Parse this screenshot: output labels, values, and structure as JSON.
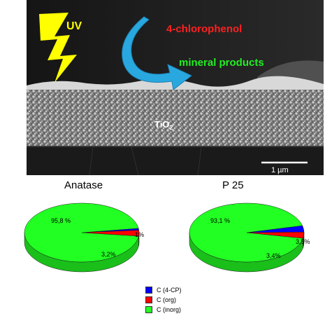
{
  "sem_image": {
    "uv_label": "UV",
    "reactant_label": "4-chlorophenol",
    "product_label": "mineral products",
    "film_label_main": "TiO",
    "film_label_sub": "2",
    "scale_bar_label": "1 µm",
    "colors": {
      "uv": "#ffff00",
      "reactant": "#ff2020",
      "product": "#22ee22",
      "arrow": "#29a8e0"
    }
  },
  "chart_data": [
    {
      "type": "pie",
      "title": "Anatase",
      "slices": [
        {
          "label": "C (inorg)",
          "value": 95.8,
          "label_text": "95,8 %",
          "color": "#22ff22"
        },
        {
          "label": "C (org)",
          "value": 3.2,
          "label_text": "3,2%",
          "color": "#ff0000"
        },
        {
          "label": "C (4-CP)",
          "value": 1,
          "label_text": "1%",
          "color": "#0000ff"
        }
      ]
    },
    {
      "type": "pie",
      "title": "P 25",
      "slices": [
        {
          "label": "C (inorg)",
          "value": 93.1,
          "label_text": "93,1 %",
          "color": "#22ff22"
        },
        {
          "label": "C (org)",
          "value": 3.4,
          "label_text": "3,4%",
          "color": "#ff0000"
        },
        {
          "label": "C (4-CP)",
          "value": 3.5,
          "label_text": "3,5%",
          "color": "#0000ff"
        }
      ]
    }
  ],
  "legend": [
    {
      "label": "C (4-CP)",
      "color": "#0000ff"
    },
    {
      "label": "C (org)",
      "color": "#ff0000"
    },
    {
      "label": "C (inorg)",
      "color": "#22ff22"
    }
  ]
}
